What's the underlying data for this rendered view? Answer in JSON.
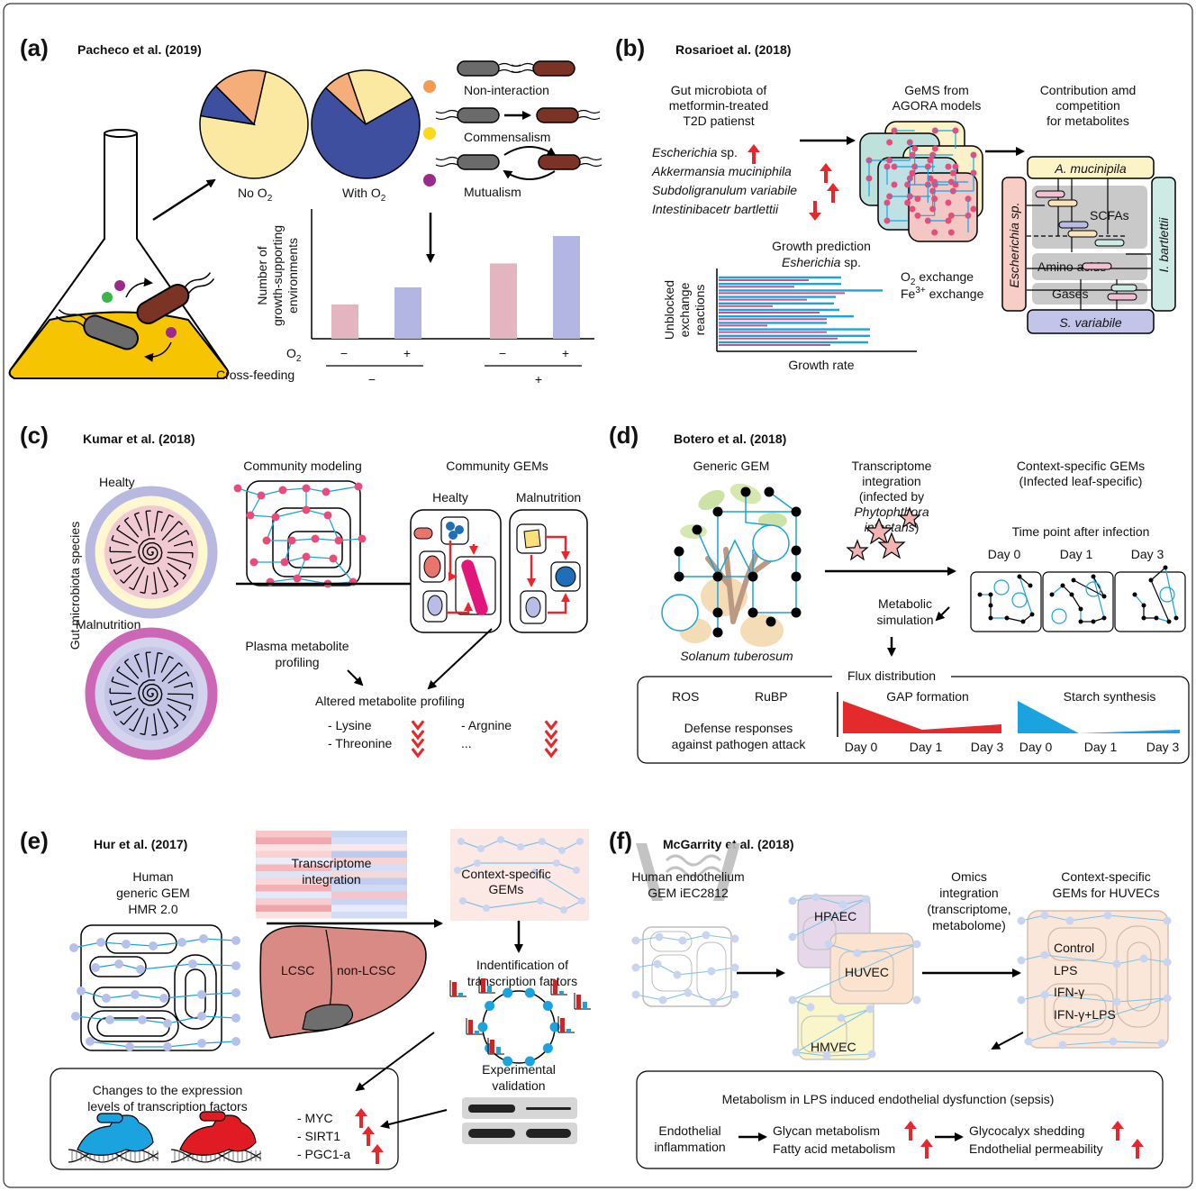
{
  "a": {
    "label": "(a)",
    "citation": "Pacheco et al. (2019)",
    "pie_no_o2": "No O",
    "pie_with_o2": "With O",
    "sub2": "2",
    "legend": [
      "Non-interaction",
      "Commensalism",
      "Mutualism"
    ],
    "legend_colors": [
      "#F39A54",
      "#FAD81C",
      "#9B2A8D"
    ],
    "ylabel_1": "Number of",
    "ylabel_2": "growth-supporting",
    "ylabel_3": "environments",
    "o2_row": "O",
    "crossfeeding_row": "Cross-feeding",
    "ticks_o2": [
      "−",
      "+",
      "−",
      "+"
    ],
    "ticks_cf": [
      "−",
      "+"
    ]
  },
  "b": {
    "label": "(b)",
    "citation": "Rosarioet al. (2018)",
    "gut_1": "Gut microbiota of",
    "gut_2": "metformin-treated",
    "gut_3": "T2D patienst",
    "species": [
      "Escherichia",
      "Akkermansia muciniphila",
      "Subdoligranulum variabile",
      "Intestinibacetr bartlettii"
    ],
    "sp_suffix": " sp.",
    "gems_1": "GeMS from",
    "gems_2": "AGORA models",
    "contrib_1": "Contribution amd",
    "contrib_2": "competition",
    "contrib_3": "for metabolites",
    "a_mucinipila": "A. mucinipila",
    "escherichia_sp": "Escherichia sp.",
    "i_bartlettii": "I. bartlettii",
    "s_variabile": "S. variabile",
    "scfas": "SCFAs",
    "amino_acids": "Amino acids",
    "gases": "Gases",
    "growth_pred_1": "Growth prediction",
    "growth_pred_2": "Esherichia",
    "growth_pred_sp": " sp.",
    "ylabel_1": "Unblocked",
    "ylabel_2": "exchange",
    "ylabel_3": "reactions",
    "xlabel": "Growth rate",
    "o2_exchange": " exchange",
    "o2": "O",
    "fe": "Fe",
    "fe_sup": "3+",
    "sub2": "2"
  },
  "c": {
    "label": "(c)",
    "citation": "Kumar et al. (2018)",
    "healty": "Healty",
    "malnutrition": "Malnutrition",
    "gut_species": "Gut microbiota species",
    "community_modeling": "Community modeling",
    "community_gems": "Community GEMs",
    "healty2": "Healty",
    "malnutrition2": "Malnutrition",
    "plasma_1": "Plasma metabolite",
    "plasma_2": "profiling",
    "altered": "Altered metabolite profiling",
    "metabolites": [
      "- Lysine",
      "- Threonine",
      "- Argnine",
      "..."
    ]
  },
  "d": {
    "label": "(d)",
    "citation": "Botero et al. (2018)",
    "generic_gem": "Generic GEM",
    "species": "Solanum tuberosum",
    "transcriptome_1": "Transcriptome",
    "transcriptome_2": "integration",
    "transcriptome_3": "(infected by",
    "transcriptome_4": "Phytophthora",
    "transcriptome_5": "infestans",
    "transcriptome_6": ")",
    "ctx_1": "Context-specific GEMs",
    "ctx_2": "(Infected leaf-specific)",
    "timepoint": "Time point after infection",
    "days": [
      "Day 0",
      "Day 1",
      "Day 3"
    ],
    "metabolic_1": "Metabolic",
    "metabolic_2": "simulation",
    "flux": "Flux distribution",
    "ros": "ROS",
    "rubp": "RuBP",
    "defense_1": "Defense responses",
    "defense_2": "against pathogen attack",
    "gap": "GAP formation",
    "starch": "Starch synthesis"
  },
  "e": {
    "label": "(e)",
    "citation": "Hur et al. (2017)",
    "human_1": "Human",
    "human_2": "generic GEM",
    "human_3": "HMR 2.0",
    "transcriptome_1": "Transcriptome",
    "transcriptome_2": "integration",
    "ctx_1": "Context-specific",
    "ctx_2": "GEMs",
    "lcsc": "LCSC",
    "non_lcsc": "non-LCSC",
    "ident_1": "Indentification of",
    "ident_2": "transcription factors",
    "exp_1": "Experimental",
    "exp_2": "validation",
    "changes_1": "Changes to the expression",
    "changes_2": "levels of transcription factors",
    "factors": [
      "- MYC",
      "- SIRT1",
      "- PGC1-a"
    ]
  },
  "f": {
    "label": "(f)",
    "citation": "McGarrity et al. (2018)",
    "human_1": "Human endothelium",
    "human_2": "GEM iEC2812",
    "hpaec": "HPAEC",
    "huvec": "HUVEC",
    "hmvec": "HMVEC",
    "omics_1": "Omics",
    "omics_2": "integration",
    "omics_3": "(transcriptome,",
    "omics_4": "metabolome)",
    "ctx_1": "Context-specific",
    "ctx_2": "GEMs for HUVECs",
    "conditions": [
      "Control",
      "LPS",
      "IFN-γ",
      "IFN-γ+LPS"
    ],
    "metab_title": "Metabolism in LPS induced endothelial dysfunction (sepsis)",
    "endo_1": "Endothelial",
    "endo_2": "inflammation",
    "glycan": "Glycan metabolism",
    "fatty": "Fatty acid metabolism",
    "glyco": "Glycocalyx shedding",
    "perm": "Endothelial permeability"
  },
  "colors": {
    "pink_bar": "#E4B4C1",
    "blue_bar": "#B3B6E2",
    "pie_yellow": "#FCE9A1",
    "pie_blue": "#3F4FA0",
    "pie_orange": "#F5AE79",
    "red_arrow": "#E8262C",
    "cyan": "#1AA3DF",
    "node_pink": "#E84C7A",
    "flux_red": "#E32B2C"
  },
  "chart_data": {
    "type": "bar",
    "categories": [
      "O2 − / Cross-feeding −",
      "O2 + / Cross-feeding −",
      "O2 − / Cross-feeding +",
      "O2 + / Cross-feeding +"
    ],
    "values": [
      1.0,
      1.5,
      2.2,
      3.0
    ],
    "ylabel": "Number of growth-supporting environments",
    "pies": [
      {
        "name": "No O2",
        "slices": [
          {
            "label": "Commensalism",
            "value": 0.74
          },
          {
            "label": "Mutualism",
            "value": 0.1
          },
          {
            "label": "Non-interaction",
            "value": 0.16
          }
        ]
      },
      {
        "name": "With O2",
        "slices": [
          {
            "label": "Commensalism",
            "value": 0.22
          },
          {
            "label": "Mutualism",
            "value": 0.7
          },
          {
            "label": "Non-interaction",
            "value": 0.08
          }
        ]
      }
    ]
  }
}
